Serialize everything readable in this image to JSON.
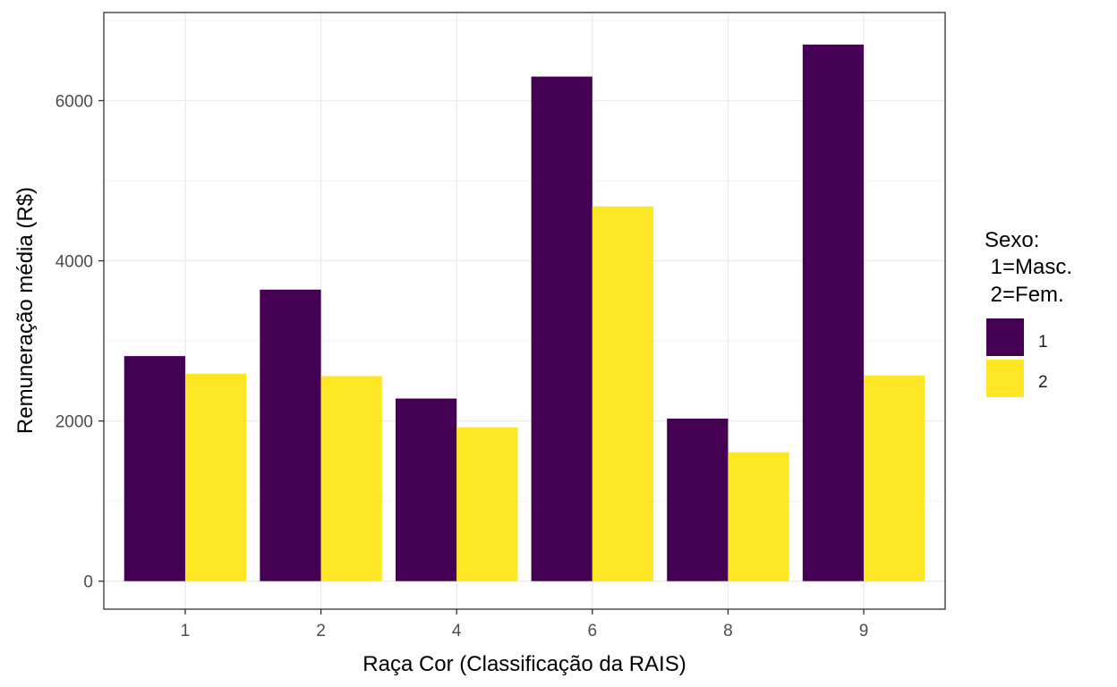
{
  "colors": {
    "series_1": "#440154",
    "series_2": "#FDE725",
    "grid_major": "#ebebeb",
    "grid_minor": "#f2f2f2",
    "panel_border": "#333333",
    "tick_text": "#4d4d4d"
  },
  "legend": {
    "title_lines": [
      "Sexo:",
      " 1=Masc.",
      " 2=Fem."
    ],
    "items": [
      "1",
      "2"
    ]
  },
  "chart_data": {
    "type": "bar",
    "xlabel": "Raça Cor (Classificação da RAIS)",
    "ylabel": "Remuneração média (R$)",
    "categories": [
      "1",
      "2",
      "4",
      "6",
      "8",
      "9"
    ],
    "series": [
      {
        "name": "1",
        "values": [
          2810,
          3640,
          2280,
          6300,
          2030,
          6700
        ]
      },
      {
        "name": "2",
        "values": [
          2590,
          2560,
          1920,
          4680,
          1610,
          2570
        ]
      }
    ],
    "ylim": [
      -350,
      7100
    ],
    "yticks": [
      0,
      2000,
      4000,
      6000
    ],
    "grid": true,
    "legend_position": "right"
  }
}
